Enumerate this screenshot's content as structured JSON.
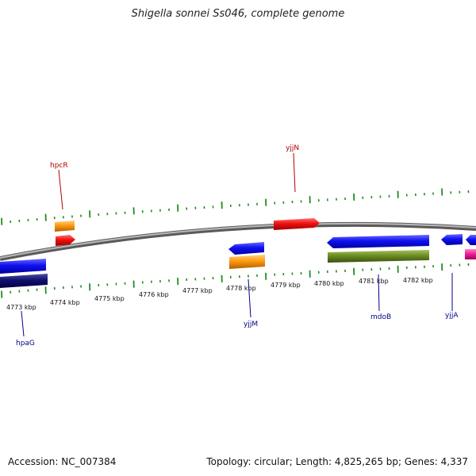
{
  "title": "Shigella sonnei Ss046, complete genome",
  "footer": {
    "accession": "Accession: NC_007384",
    "summary": "Topology: circular; Length: 4,825,265 bp; Genes: 4,337"
  },
  "colors": {
    "backbone": "#8a8a8a",
    "tick": "#228b22",
    "forward_label": "#b00000",
    "reverse_label": "#00008b"
  },
  "ticks": [
    "4773 kbp",
    "4774 kbp",
    "4775 kbp",
    "4776 kbp",
    "4777 kbp",
    "4778 kbp",
    "4779 kbp",
    "4780 kbp",
    "4781 kbp",
    "4782 kbp"
  ],
  "gene_labels": [
    {
      "name": "hpcR",
      "strand": "forward"
    },
    {
      "name": "yjjN",
      "strand": "forward"
    },
    {
      "name": "hpaG",
      "strand": "reverse"
    },
    {
      "name": "yjjM",
      "strand": "reverse"
    },
    {
      "name": "mdoB",
      "strand": "reverse"
    },
    {
      "name": "yjjA",
      "strand": "reverse"
    }
  ]
}
